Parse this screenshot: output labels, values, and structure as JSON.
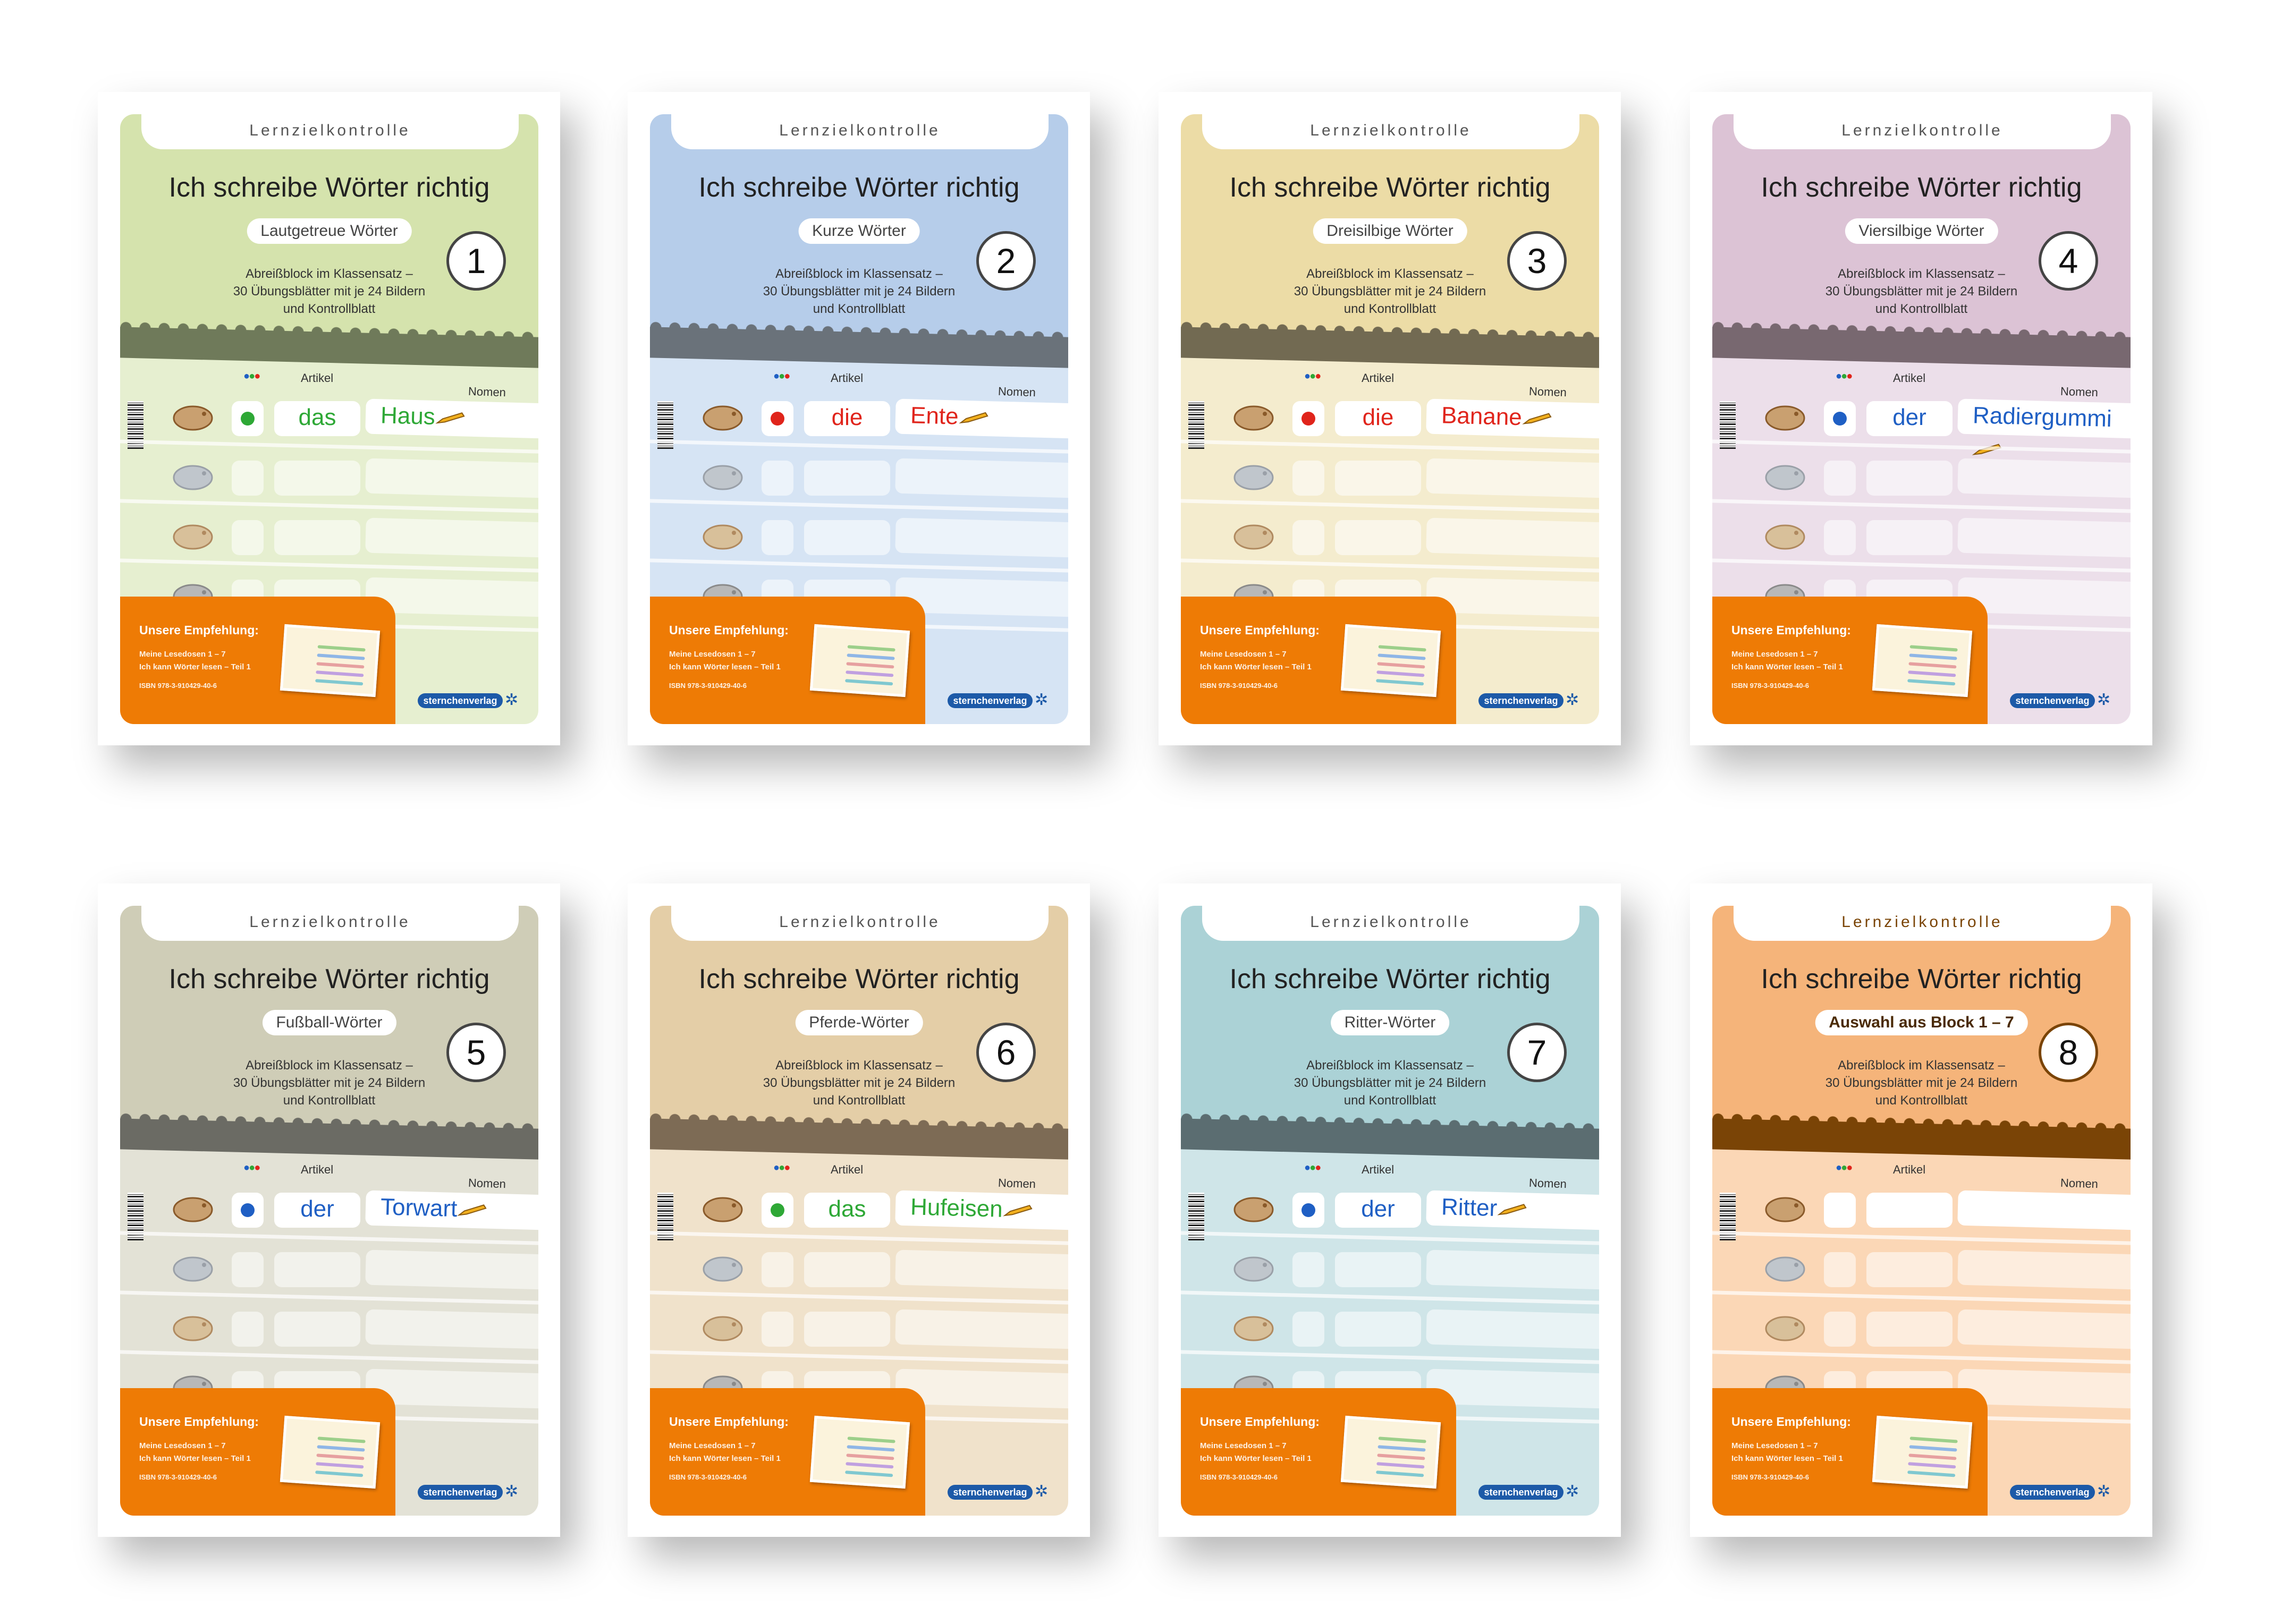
{
  "common": {
    "header": "Lernzielkontrolle",
    "title": "Ich schreibe Wörter richtig",
    "desc": [
      "Abreißblock im Klassensatz –",
      "30 Übungsblätter mit je 24 Bildern",
      "und Kontrollblatt"
    ],
    "artikel_label": "Artikel",
    "nomen_label": "Nomen",
    "recommend": {
      "heading": "Unsere Empfehlung:",
      "line1": "Meine Lesedosen 1 – 7",
      "line2": "Ich kann Wörter lesen – Teil 1",
      "isbn": "ISBN 978-3-910429-40-6"
    },
    "publisher": "sternchenverlag",
    "dot_colors": {
      "blue": "#1f5fc4",
      "green": "#2ea836",
      "red": "#e0241b"
    }
  },
  "covers": [
    {
      "number": "1",
      "subtitle": "Lautgetreue Wörter",
      "top": "#d5e3ad",
      "bottom": "#e6efd0",
      "band": "#6f7a5a",
      "example": {
        "dot": "green",
        "article": "das",
        "noun": "Haus"
      }
    },
    {
      "number": "2",
      "subtitle": "Kurze Wörter",
      "top": "#b6cdea",
      "bottom": "#d6e4f4",
      "band": "#6a727a",
      "example": {
        "dot": "red",
        "article": "die",
        "noun": "Ente"
      }
    },
    {
      "number": "3",
      "subtitle": "Dreisilbige Wörter",
      "top": "#ecdca6",
      "bottom": "#f4ecce",
      "band": "#726a52",
      "example": {
        "dot": "red",
        "article": "die",
        "noun": "Banane"
      }
    },
    {
      "number": "4",
      "subtitle": "Viersilbige Wörter",
      "top": "#dcc3d5",
      "bottom": "#ecdfea",
      "band": "#786870",
      "example": {
        "dot": "blue",
        "article": "der",
        "noun": "Radiergummi"
      }
    },
    {
      "number": "5",
      "subtitle": "Fußball-Wörter",
      "top": "#cfcdb7",
      "bottom": "#e3e2d6",
      "band": "#6b6b64",
      "example": {
        "dot": "blue",
        "article": "der",
        "noun": "Torwart"
      }
    },
    {
      "number": "6",
      "subtitle": "Pferde-Wörter",
      "top": "#e4cea7",
      "bottom": "#f0e2cb",
      "band": "#7d6b55",
      "example": {
        "dot": "green",
        "article": "das",
        "noun": "Hufeisen"
      }
    },
    {
      "number": "7",
      "subtitle": "Ritter-Wörter",
      "top": "#abd2d6",
      "bottom": "#cfe5e8",
      "band": "#5b6d71",
      "example": {
        "dot": "blue",
        "article": "der",
        "noun": "Ritter"
      }
    },
    {
      "number": "8",
      "subtitle": "Auswahl aus Block 1 – 7",
      "top": "#f5b47a",
      "bottom": "#fbd7b6",
      "band": "#7a4406",
      "accent": "#7a4406",
      "example": null
    }
  ]
}
